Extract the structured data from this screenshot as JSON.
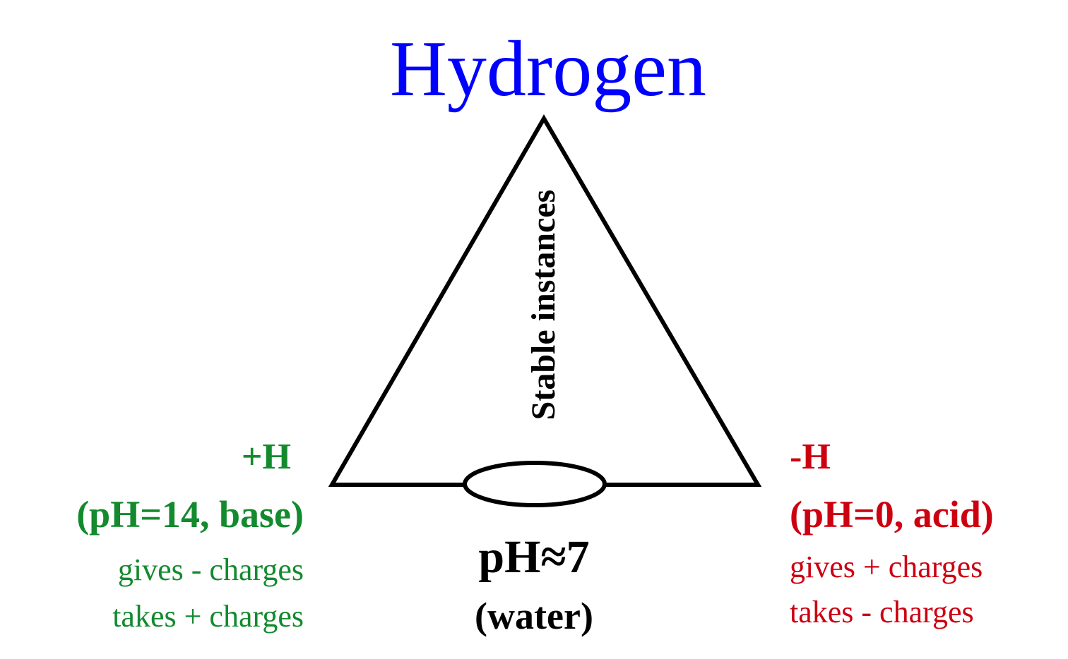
{
  "title": "Hydrogen",
  "left": {
    "label": "+H",
    "condition": "(pH=14, base)",
    "line1": "gives - charges",
    "line2": "takes + charges"
  },
  "right": {
    "label": "-H",
    "condition": "(pH=0, acid)",
    "line1": "gives + charges",
    "line2": "takes - charges"
  },
  "center": {
    "ph": "pH≈7",
    "name": "(water)"
  },
  "vertical_label": "Stable instances",
  "colors": {
    "title": "#0000ff",
    "base": "#138a2e",
    "acid": "#cc0011",
    "neutral": "#000000"
  }
}
